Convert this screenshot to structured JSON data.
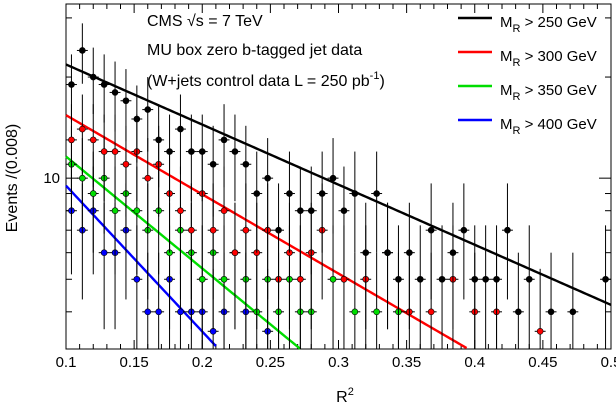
{
  "chart_data": {
    "type": "scatter",
    "xlabel": "R",
    "xlabel_sup": "2",
    "ylabel": "Events /(0.008)",
    "xlim": [
      0.1,
      0.5
    ],
    "ylim": [
      3.1,
      33
    ],
    "yscale": "log",
    "grid": false,
    "legend_position": "top-right",
    "x_ticks": [
      0.1,
      0.15,
      0.2,
      0.25,
      0.3,
      0.35,
      0.4,
      0.45,
      0.5
    ],
    "x_tick_labels": [
      "0.1",
      "0.15",
      "0.2",
      "0.25",
      "0.3",
      "0.35",
      "0.4",
      "0.45",
      "0.5"
    ],
    "y_tick_labels": [
      {
        "value": 10,
        "label": "10"
      }
    ],
    "annotations": [
      "CMS √s = 7 TeV",
      "MU box zero b-tagged jet data",
      "(W+jets control data L = 250 pb",
      "-1",
      ")"
    ],
    "series": [
      {
        "name": "M",
        "name_sub": "R",
        "name_tail": " > 250 GeV",
        "color": "#000000",
        "fit": {
          "a": 21.8,
          "b": 4.12
        },
        "x": [
          0.104,
          0.112,
          0.12,
          0.128,
          0.136,
          0.144,
          0.152,
          0.16,
          0.168,
          0.176,
          0.184,
          0.192,
          0.2,
          0.208,
          0.216,
          0.224,
          0.232,
          0.24,
          0.248,
          0.256,
          0.264,
          0.272,
          0.28,
          0.288,
          0.296,
          0.304,
          0.312,
          0.32,
          0.328,
          0.336,
          0.344,
          0.352,
          0.36,
          0.368,
          0.376,
          0.384,
          0.392,
          0.4,
          0.408,
          0.416,
          0.424,
          0.432,
          0.44,
          0.456,
          0.472,
          0.496
        ],
        "y": [
          19,
          24,
          20,
          19,
          18,
          17,
          15,
          16,
          13,
          12,
          14,
          12,
          12,
          11,
          13,
          12,
          11,
          9,
          10,
          7,
          9,
          8,
          8,
          9,
          10,
          8,
          9,
          6,
          9,
          6,
          5,
          6,
          5,
          7,
          5,
          6,
          7,
          5,
          5,
          5,
          7,
          4,
          5,
          4,
          4,
          5
        ]
      },
      {
        "name": "M",
        "name_sub": "R",
        "name_tail": " > 300 GeV",
        "color": "#ff0000",
        "fit": {
          "a": 15.4,
          "b": 5.43
        },
        "x": [
          0.104,
          0.112,
          0.12,
          0.128,
          0.136,
          0.144,
          0.152,
          0.16,
          0.168,
          0.176,
          0.184,
          0.192,
          0.2,
          0.208,
          0.216,
          0.224,
          0.232,
          0.24,
          0.248,
          0.256,
          0.264,
          0.272,
          0.28,
          0.288,
          0.304,
          0.32,
          0.336,
          0.352,
          0.368,
          0.384,
          0.4,
          0.416,
          0.448
        ],
        "y": [
          13,
          14,
          13,
          12,
          12,
          11,
          12,
          10,
          11,
          9,
          8,
          7,
          9,
          7,
          8,
          6,
          7,
          6,
          7,
          5,
          6,
          5,
          6,
          7,
          5,
          5,
          6,
          4,
          4,
          5,
          4,
          4,
          3.5
        ]
      },
      {
        "name": "M",
        "name_sub": "R",
        "name_tail": " > 350 GeV",
        "color": "#00dd00",
        "fit": {
          "a": 11.6,
          "b": 7.67
        },
        "x": [
          0.104,
          0.112,
          0.12,
          0.128,
          0.136,
          0.144,
          0.152,
          0.16,
          0.168,
          0.176,
          0.184,
          0.192,
          0.2,
          0.208,
          0.216,
          0.224,
          0.232,
          0.24,
          0.248,
          0.256,
          0.264,
          0.272,
          0.28,
          0.296,
          0.312,
          0.328,
          0.344
        ],
        "y": [
          11,
          10,
          9,
          10,
          8,
          9,
          8,
          7,
          8,
          6,
          7,
          6,
          5,
          6,
          5,
          6,
          5,
          4,
          5,
          4,
          5,
          4,
          4,
          5,
          4,
          4,
          4
        ]
      },
      {
        "name": "M",
        "name_sub": "R",
        "name_tail": " > 400 GeV",
        "color": "#0000ff",
        "fit": {
          "a": 9.5,
          "b": 10.0
        },
        "x": [
          0.104,
          0.112,
          0.12,
          0.128,
          0.136,
          0.144,
          0.152,
          0.16,
          0.168,
          0.176,
          0.184,
          0.192,
          0.2,
          0.208,
          0.216,
          0.232,
          0.248
        ],
        "y": [
          8,
          7,
          8,
          6,
          6,
          7,
          5,
          4,
          4,
          5,
          4,
          4,
          4,
          3.5,
          4,
          4,
          3.5
        ]
      }
    ]
  }
}
